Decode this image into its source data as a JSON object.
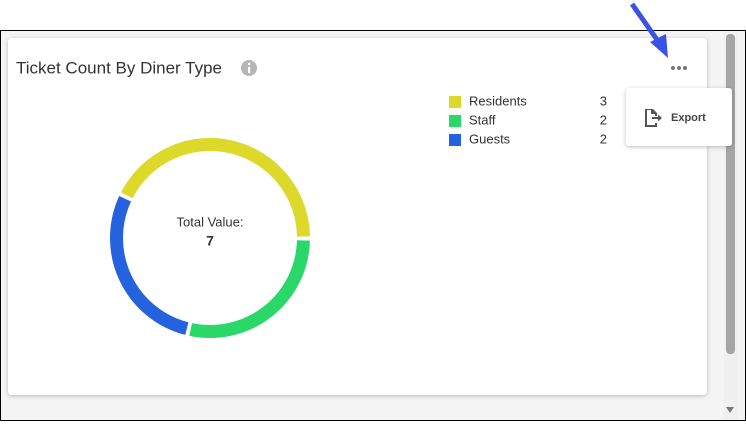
{
  "chart_data": {
    "type": "donut",
    "title": "Ticket Count By Diner Type",
    "categories": [
      "Residents",
      "Staff",
      "Guests"
    ],
    "values": [
      3,
      2,
      2
    ],
    "colors": [
      "#dcd92a",
      "#29d869",
      "#2562de"
    ],
    "center_label": "Total Value:",
    "total": 7
  },
  "menu": {
    "items": [
      "Export"
    ]
  }
}
